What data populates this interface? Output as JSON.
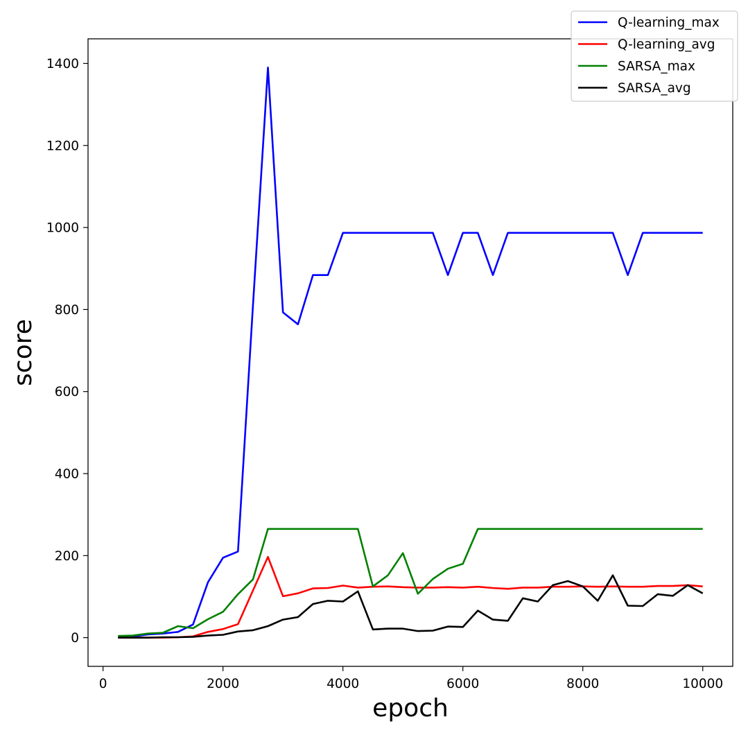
{
  "chart_data": {
    "type": "line",
    "title": "",
    "xlabel": "epoch",
    "ylabel": "score",
    "xlim": [
      -250,
      10500
    ],
    "ylim": [
      -70,
      1460
    ],
    "x_ticks": [
      0,
      2000,
      4000,
      6000,
      8000,
      10000
    ],
    "y_ticks": [
      0,
      200,
      400,
      600,
      800,
      1000,
      1200,
      1400
    ],
    "grid": false,
    "legend_position": "top-right",
    "x": [
      250,
      500,
      750,
      1000,
      1250,
      1500,
      1750,
      2000,
      2250,
      2500,
      2750,
      3000,
      3250,
      3500,
      3750,
      4000,
      4250,
      4500,
      4750,
      5000,
      5250,
      5500,
      5750,
      6000,
      6250,
      6500,
      6750,
      7000,
      7250,
      7500,
      7750,
      8000,
      8250,
      8500,
      8750,
      9000,
      9250,
      9500,
      9750,
      10000
    ],
    "series": [
      {
        "name": "Q-learning_max",
        "color": "#0000ff",
        "values": [
          2,
          3,
          8,
          10,
          14,
          32,
          135,
          195,
          210,
          810,
          1390,
          793,
          764,
          884,
          884,
          987,
          987,
          987,
          987,
          987,
          987,
          987,
          884,
          987,
          987,
          884,
          987,
          987,
          987,
          987,
          987,
          987,
          987,
          987,
          884,
          987,
          987,
          987,
          987,
          987
        ]
      },
      {
        "name": "Q-learning_avg",
        "color": "#ff0000",
        "values": [
          0,
          0,
          0,
          0,
          1,
          3,
          14,
          21,
          33,
          115,
          197,
          101,
          108,
          120,
          121,
          127,
          122,
          124,
          125,
          123,
          122,
          122,
          123,
          122,
          124,
          121,
          119,
          122,
          122,
          124,
          124,
          125,
          124,
          125,
          124,
          124,
          126,
          126,
          128,
          125
        ]
      },
      {
        "name": "SARSA_max",
        "color": "#008000",
        "values": [
          4,
          5,
          10,
          12,
          28,
          23,
          45,
          63,
          106,
          142,
          265,
          265,
          265,
          265,
          265,
          265,
          265,
          125,
          152,
          206,
          107,
          143,
          168,
          180,
          265,
          265,
          265,
          265,
          265,
          265,
          265,
          265,
          265,
          265,
          265,
          265,
          265,
          265,
          265,
          265
        ]
      },
      {
        "name": "SARSA_avg",
        "color": "#000000",
        "values": [
          0,
          0,
          0,
          1,
          1,
          2,
          5,
          7,
          15,
          18,
          28,
          44,
          50,
          82,
          90,
          88,
          113,
          20,
          22,
          22,
          16,
          17,
          27,
          26,
          66,
          44,
          41,
          96,
          88,
          128,
          138,
          125,
          90,
          152,
          78,
          77,
          106,
          102,
          128,
          108
        ]
      }
    ]
  }
}
